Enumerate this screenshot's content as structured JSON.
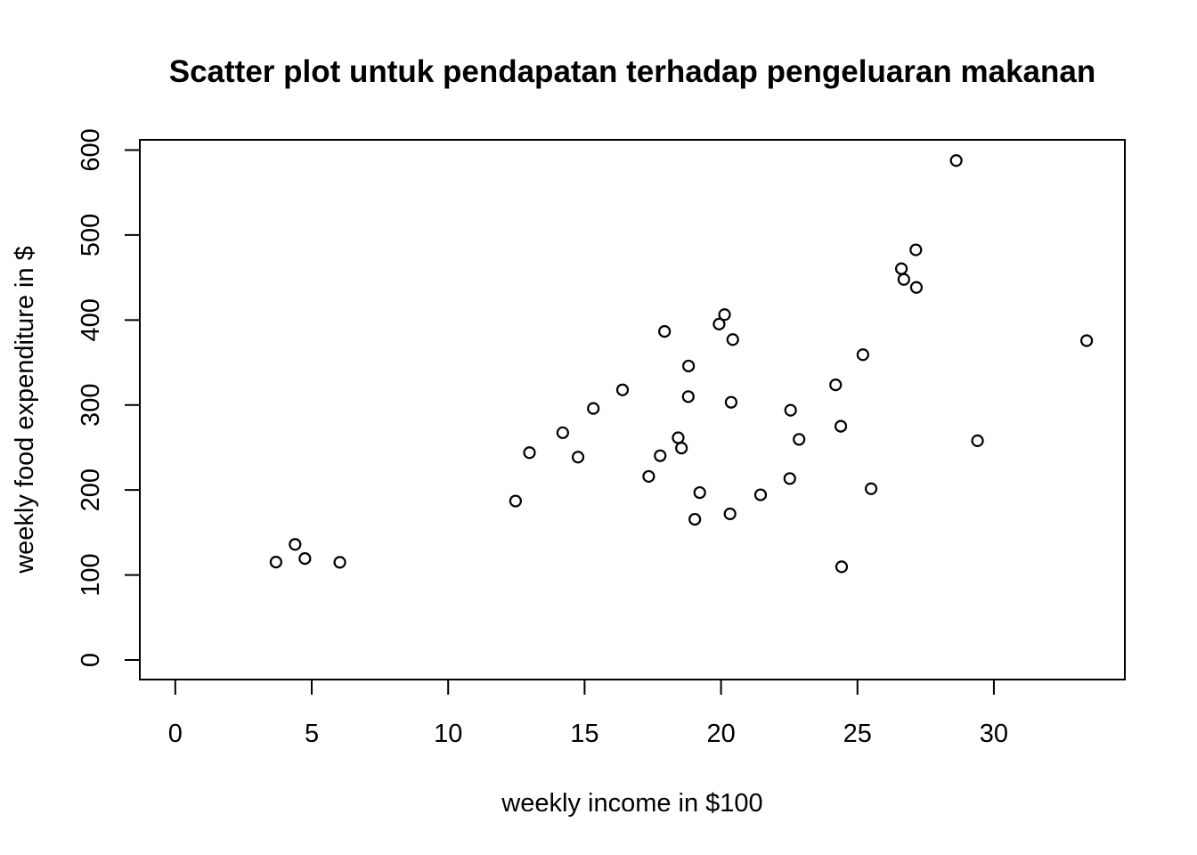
{
  "chart_data": {
    "type": "scatter",
    "title": "Scatter plot untuk pendapatan terhadap pengeluaran makanan",
    "xlabel": "weekly income in $100",
    "ylabel": "weekly food expenditure in $",
    "xlim": [
      -1.3,
      34.8
    ],
    "ylim": [
      -23,
      612
    ],
    "x_ticks": [
      0,
      5,
      10,
      15,
      20,
      25,
      30
    ],
    "y_ticks": [
      0,
      100,
      200,
      300,
      400,
      500,
      600
    ],
    "grid": false,
    "legend": "none",
    "point_shape": "open-circle",
    "color": "#000000",
    "x": [
      3.69,
      4.39,
      4.75,
      6.03,
      12.47,
      12.98,
      14.2,
      14.76,
      15.32,
      16.39,
      17.35,
      17.77,
      17.93,
      18.43,
      18.55,
      18.8,
      18.81,
      19.04,
      19.22,
      19.93,
      20.13,
      20.33,
      20.37,
      20.43,
      21.45,
      22.52,
      22.55,
      22.86,
      24.2,
      24.39,
      24.42,
      25.2,
      25.5,
      26.61,
      26.7,
      27.14,
      27.16,
      28.62,
      29.4,
      33.4
    ],
    "y": [
      115.22,
      135.98,
      119.34,
      114.96,
      187.05,
      243.92,
      267.43,
      238.71,
      295.94,
      317.78,
      216.0,
      240.35,
      386.57,
      261.53,
      249.34,
      309.87,
      345.89,
      165.54,
      196.98,
      395.26,
      406.34,
      171.92,
      303.23,
      377.04,
      194.35,
      213.48,
      293.87,
      259.61,
      323.71,
      275.02,
      109.71,
      359.19,
      201.51,
      460.36,
      447.76,
      482.55,
      438.29,
      587.66,
      257.95,
      375.73
    ]
  }
}
